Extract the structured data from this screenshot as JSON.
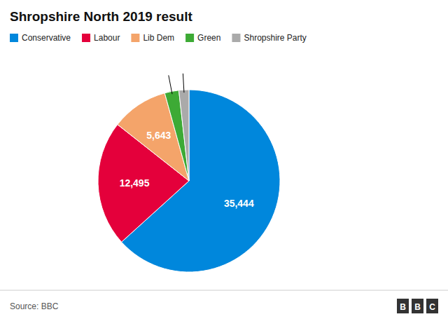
{
  "chart_data": {
    "type": "pie",
    "title": "Shropshire North 2019 result",
    "categories": [
      "Conservative",
      "Labour",
      "Lib Dem",
      "Green",
      "Shropshire Party"
    ],
    "values": [
      35444,
      12495,
      5643,
      1413,
      1000
    ],
    "value_labels": [
      "35,444",
      "12,495",
      "5,643",
      null,
      null
    ],
    "colors": [
      "#0087DC",
      "#E4003B",
      "#F4A46A",
      "#3DAA35",
      "#AAAAAA"
    ],
    "data_labels": true,
    "legend": "top",
    "annotations": [
      "Source: BBC",
      "BBC"
    ]
  }
}
